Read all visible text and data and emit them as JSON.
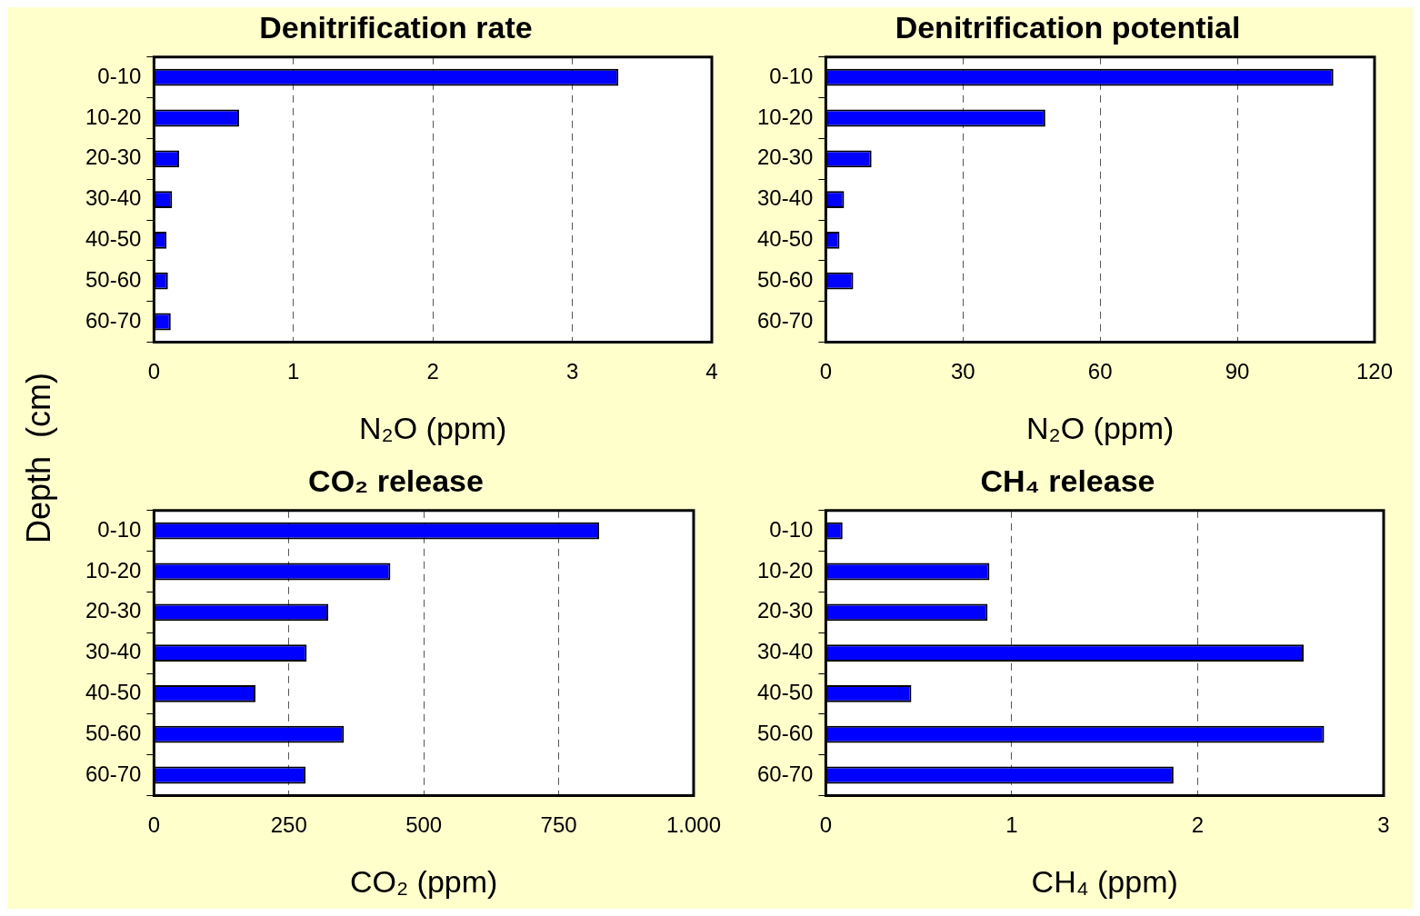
{
  "chart_data": [
    {
      "type": "bar",
      "title": "Denitrification rate",
      "xlabel": "N₂O (ppm)",
      "ylabel": "Depth  (cm)",
      "orientation": "horizontal",
      "categories": [
        "0-10",
        "10-20",
        "20-30",
        "30-40",
        "40-50",
        "50-60",
        "60-70"
      ],
      "values": [
        3.33,
        0.61,
        0.18,
        0.13,
        0.09,
        0.1,
        0.12
      ],
      "color": "#0000ff",
      "xlim": [
        0,
        4
      ],
      "xticks": [
        0,
        1,
        2,
        3,
        4
      ],
      "grid": "x",
      "legend": false
    },
    {
      "type": "bar",
      "title": "Denitrification potential",
      "xlabel": "N₂O (ppm)",
      "orientation": "horizontal",
      "categories": [
        "0-10",
        "10-20",
        "20-30",
        "30-40",
        "40-50",
        "50-60",
        "60-70"
      ],
      "values": [
        111,
        48,
        10,
        4,
        3,
        6,
        null
      ],
      "color": "#0000ff",
      "xlim": [
        0,
        120
      ],
      "xticks": [
        0,
        30,
        60,
        90,
        120
      ],
      "grid": "x",
      "legend": false
    },
    {
      "type": "bar",
      "title": "CO₂ release",
      "xlabel": "CO₂ (ppm)",
      "orientation": "horizontal",
      "categories": [
        "0-10",
        "10-20",
        "20-30",
        "30-40",
        "40-50",
        "50-60",
        "60-70"
      ],
      "values": [
        825,
        438,
        323,
        283,
        188,
        352,
        281
      ],
      "color": "#0000ff",
      "xlim": [
        0,
        1000
      ],
      "xticks": [
        0,
        250,
        500,
        750,
        {
          "value": 1000,
          "label": "1.000"
        }
      ],
      "grid": "x",
      "legend": false
    },
    {
      "type": "bar",
      "title": "CH₄ release",
      "xlabel": "CH₄ (ppm)",
      "orientation": "horizontal",
      "categories": [
        "0-10",
        "10-20",
        "20-30",
        "30-40",
        "40-50",
        "50-60",
        "60-70"
      ],
      "values": [
        0.09,
        0.88,
        0.87,
        2.57,
        0.46,
        2.68,
        1.87
      ],
      "color": "#0000ff",
      "xlim": [
        0,
        3
      ],
      "xticks": [
        0,
        1,
        2,
        3
      ],
      "grid": "x",
      "legend": false
    }
  ]
}
